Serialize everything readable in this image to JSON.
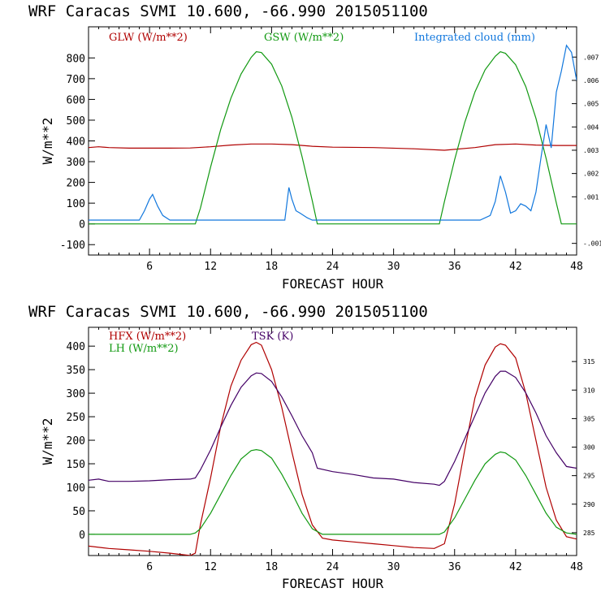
{
  "chart_data": [
    {
      "type": "line",
      "title": "WRF  Caracas SVMI  10.600, -66.990  2015051100",
      "xlabel": "FORECAST HOUR",
      "ylabel": "W/m**2",
      "xlim": [
        0,
        48
      ],
      "ylim": [
        -150,
        950
      ],
      "x_ticks": [
        6,
        12,
        18,
        24,
        30,
        36,
        42,
        48
      ],
      "y_ticks": [
        -100,
        0,
        100,
        200,
        300,
        400,
        500,
        600,
        700,
        800
      ],
      "y2lim": [
        -0.0015,
        0.0083
      ],
      "y2_ticks": [
        -0.001,
        0.001,
        0.002,
        0.003,
        0.004,
        0.005,
        0.006,
        0.007
      ],
      "y2_tick_labels": [
        "-.001",
        ".001",
        ".002",
        ".003",
        ".004",
        ".005",
        ".006",
        ".007"
      ],
      "series": [
        {
          "name": "GLW (W/m**2)",
          "color": "#b00000",
          "axis": "left",
          "x": [
            0,
            1,
            2,
            4,
            6,
            8,
            10,
            12,
            14,
            16,
            18,
            20,
            22,
            24,
            28,
            32,
            35,
            38,
            40,
            42,
            44,
            46,
            48
          ],
          "y": [
            368,
            372,
            368,
            365,
            365,
            365,
            366,
            372,
            380,
            385,
            385,
            382,
            374,
            370,
            368,
            362,
            355,
            368,
            382,
            385,
            380,
            378,
            378
          ]
        },
        {
          "name": "GSW (W/m**2)",
          "color": "#119911",
          "axis": "left",
          "x": [
            0,
            10.5,
            11,
            12,
            13,
            14,
            15,
            16,
            16.5,
            17,
            18,
            19,
            20,
            21,
            22,
            22.5,
            34,
            34.5,
            35,
            36,
            37,
            38,
            39,
            40,
            40.5,
            41,
            42,
            43,
            44,
            45,
            46,
            46.5,
            48
          ],
          "y": [
            0,
            0,
            75,
            274,
            456,
            606,
            722,
            803,
            830,
            826,
            770,
            665,
            514,
            324,
            112,
            0,
            0,
            0,
            107,
            310,
            490,
            636,
            743,
            808,
            830,
            822,
            767,
            662,
            509,
            316,
            101,
            0,
            0
          ]
        },
        {
          "name": "Integrated cloud (mm)",
          "color": "#1177dd",
          "axis": "right",
          "x": [
            0,
            5,
            5.5,
            6,
            6.3,
            6.8,
            7.3,
            8,
            10,
            19.3,
            19.7,
            20,
            20.4,
            20.8,
            21.5,
            22,
            30,
            38.5,
            39.5,
            40,
            40.5,
            41,
            41.5,
            42,
            42.5,
            43,
            43.5,
            44,
            44.5,
            45,
            45.5,
            46,
            46.5,
            47,
            47.5,
            48
          ],
          "y": [
            0,
            0,
            0.0004,
            0.0009,
            0.0011,
            0.0006,
            0.0002,
            0,
            0,
            0,
            0.0014,
            0.0009,
            0.0004,
            0.0003,
            0.0001,
            0,
            0,
            0,
            0.0002,
            0.0008,
            0.0019,
            0.0012,
            0.0003,
            0.0004,
            0.0007,
            0.0006,
            0.0004,
            0.0012,
            0.0027,
            0.0041,
            0.0031,
            0.0055,
            0.0064,
            0.0075,
            0.0072,
            0.006
          ]
        }
      ]
    },
    {
      "type": "line",
      "title": "WRF  Caracas SVMI  10.600, -66.990  2015051100",
      "xlabel": "FORECAST HOUR",
      "ylabel": "W/m**2",
      "xlim": [
        0,
        48
      ],
      "ylim": [
        -45,
        440
      ],
      "x_ticks": [
        6,
        12,
        18,
        24,
        30,
        36,
        42,
        48
      ],
      "y_ticks": [
        0,
        50,
        100,
        150,
        200,
        250,
        300,
        350,
        400
      ],
      "y2lim": [
        281,
        321
      ],
      "y2_ticks": [
        285,
        290,
        295,
        300,
        305,
        310,
        315
      ],
      "y2_tick_labels": [
        "285",
        "290",
        "295",
        "300",
        "305",
        "310",
        "315"
      ],
      "series": [
        {
          "name": "HFX (W/m**2)",
          "color": "#b00000",
          "axis": "left",
          "x": [
            0,
            2,
            4,
            6,
            8,
            10,
            10.5,
            11,
            12,
            13,
            14,
            15,
            16,
            16.5,
            17,
            18,
            19,
            20,
            21,
            22,
            23,
            24,
            26,
            28,
            30,
            32,
            34,
            35,
            36,
            37,
            38,
            39,
            40,
            40.5,
            41,
            42,
            43,
            44,
            45,
            46,
            47,
            48
          ],
          "y": [
            -25,
            -30,
            -33,
            -36,
            -40,
            -45,
            -40,
            20,
            120,
            230,
            315,
            370,
            403,
            408,
            402,
            350,
            270,
            175,
            85,
            20,
            -8,
            -12,
            -16,
            -20,
            -24,
            -28,
            -30,
            -20,
            65,
            180,
            290,
            360,
            398,
            405,
            402,
            375,
            300,
            200,
            100,
            30,
            -5,
            -10
          ]
        },
        {
          "name": "LH (W/m**2)",
          "color": "#119911",
          "axis": "left",
          "x": [
            0,
            10,
            10.5,
            11,
            12,
            13,
            14,
            15,
            16,
            16.5,
            17,
            18,
            19,
            20,
            21,
            22,
            23,
            34.5,
            35,
            36,
            37,
            38,
            39,
            40,
            40.5,
            41,
            42,
            43,
            44,
            45,
            46,
            47,
            48
          ],
          "y": [
            0,
            0,
            3,
            12,
            45,
            85,
            125,
            160,
            178,
            180,
            178,
            162,
            128,
            88,
            45,
            12,
            0,
            0,
            5,
            35,
            75,
            115,
            150,
            170,
            175,
            173,
            158,
            125,
            85,
            45,
            15,
            3,
            0
          ]
        },
        {
          "name": "TSK (K)",
          "color": "#440066",
          "axis": "right",
          "x": [
            0,
            1,
            2,
            4,
            6,
            8,
            10,
            10.5,
            11,
            12,
            13,
            14,
            15,
            16,
            16.5,
            17,
            18,
            19,
            20,
            21,
            22,
            22.5,
            24,
            26,
            28,
            30,
            32,
            34,
            34.5,
            35,
            36,
            37,
            38,
            39,
            40,
            40.5,
            41,
            42,
            43,
            44,
            45,
            46,
            47,
            48
          ],
          "y": [
            294.2,
            294.4,
            294.0,
            294.0,
            294.1,
            294.3,
            294.4,
            294.6,
            296.0,
            299.5,
            303.5,
            307.3,
            310.5,
            312.5,
            313.0,
            312.9,
            311.5,
            308.8,
            305.5,
            302.0,
            299.0,
            296.3,
            295.7,
            295.2,
            294.6,
            294.4,
            293.8,
            293.5,
            293.3,
            294.0,
            297.5,
            301.5,
            305.5,
            309.5,
            312.4,
            313.3,
            313.3,
            312.2,
            309.5,
            306.0,
            302.0,
            299.0,
            296.6,
            296.3
          ]
        }
      ]
    }
  ]
}
